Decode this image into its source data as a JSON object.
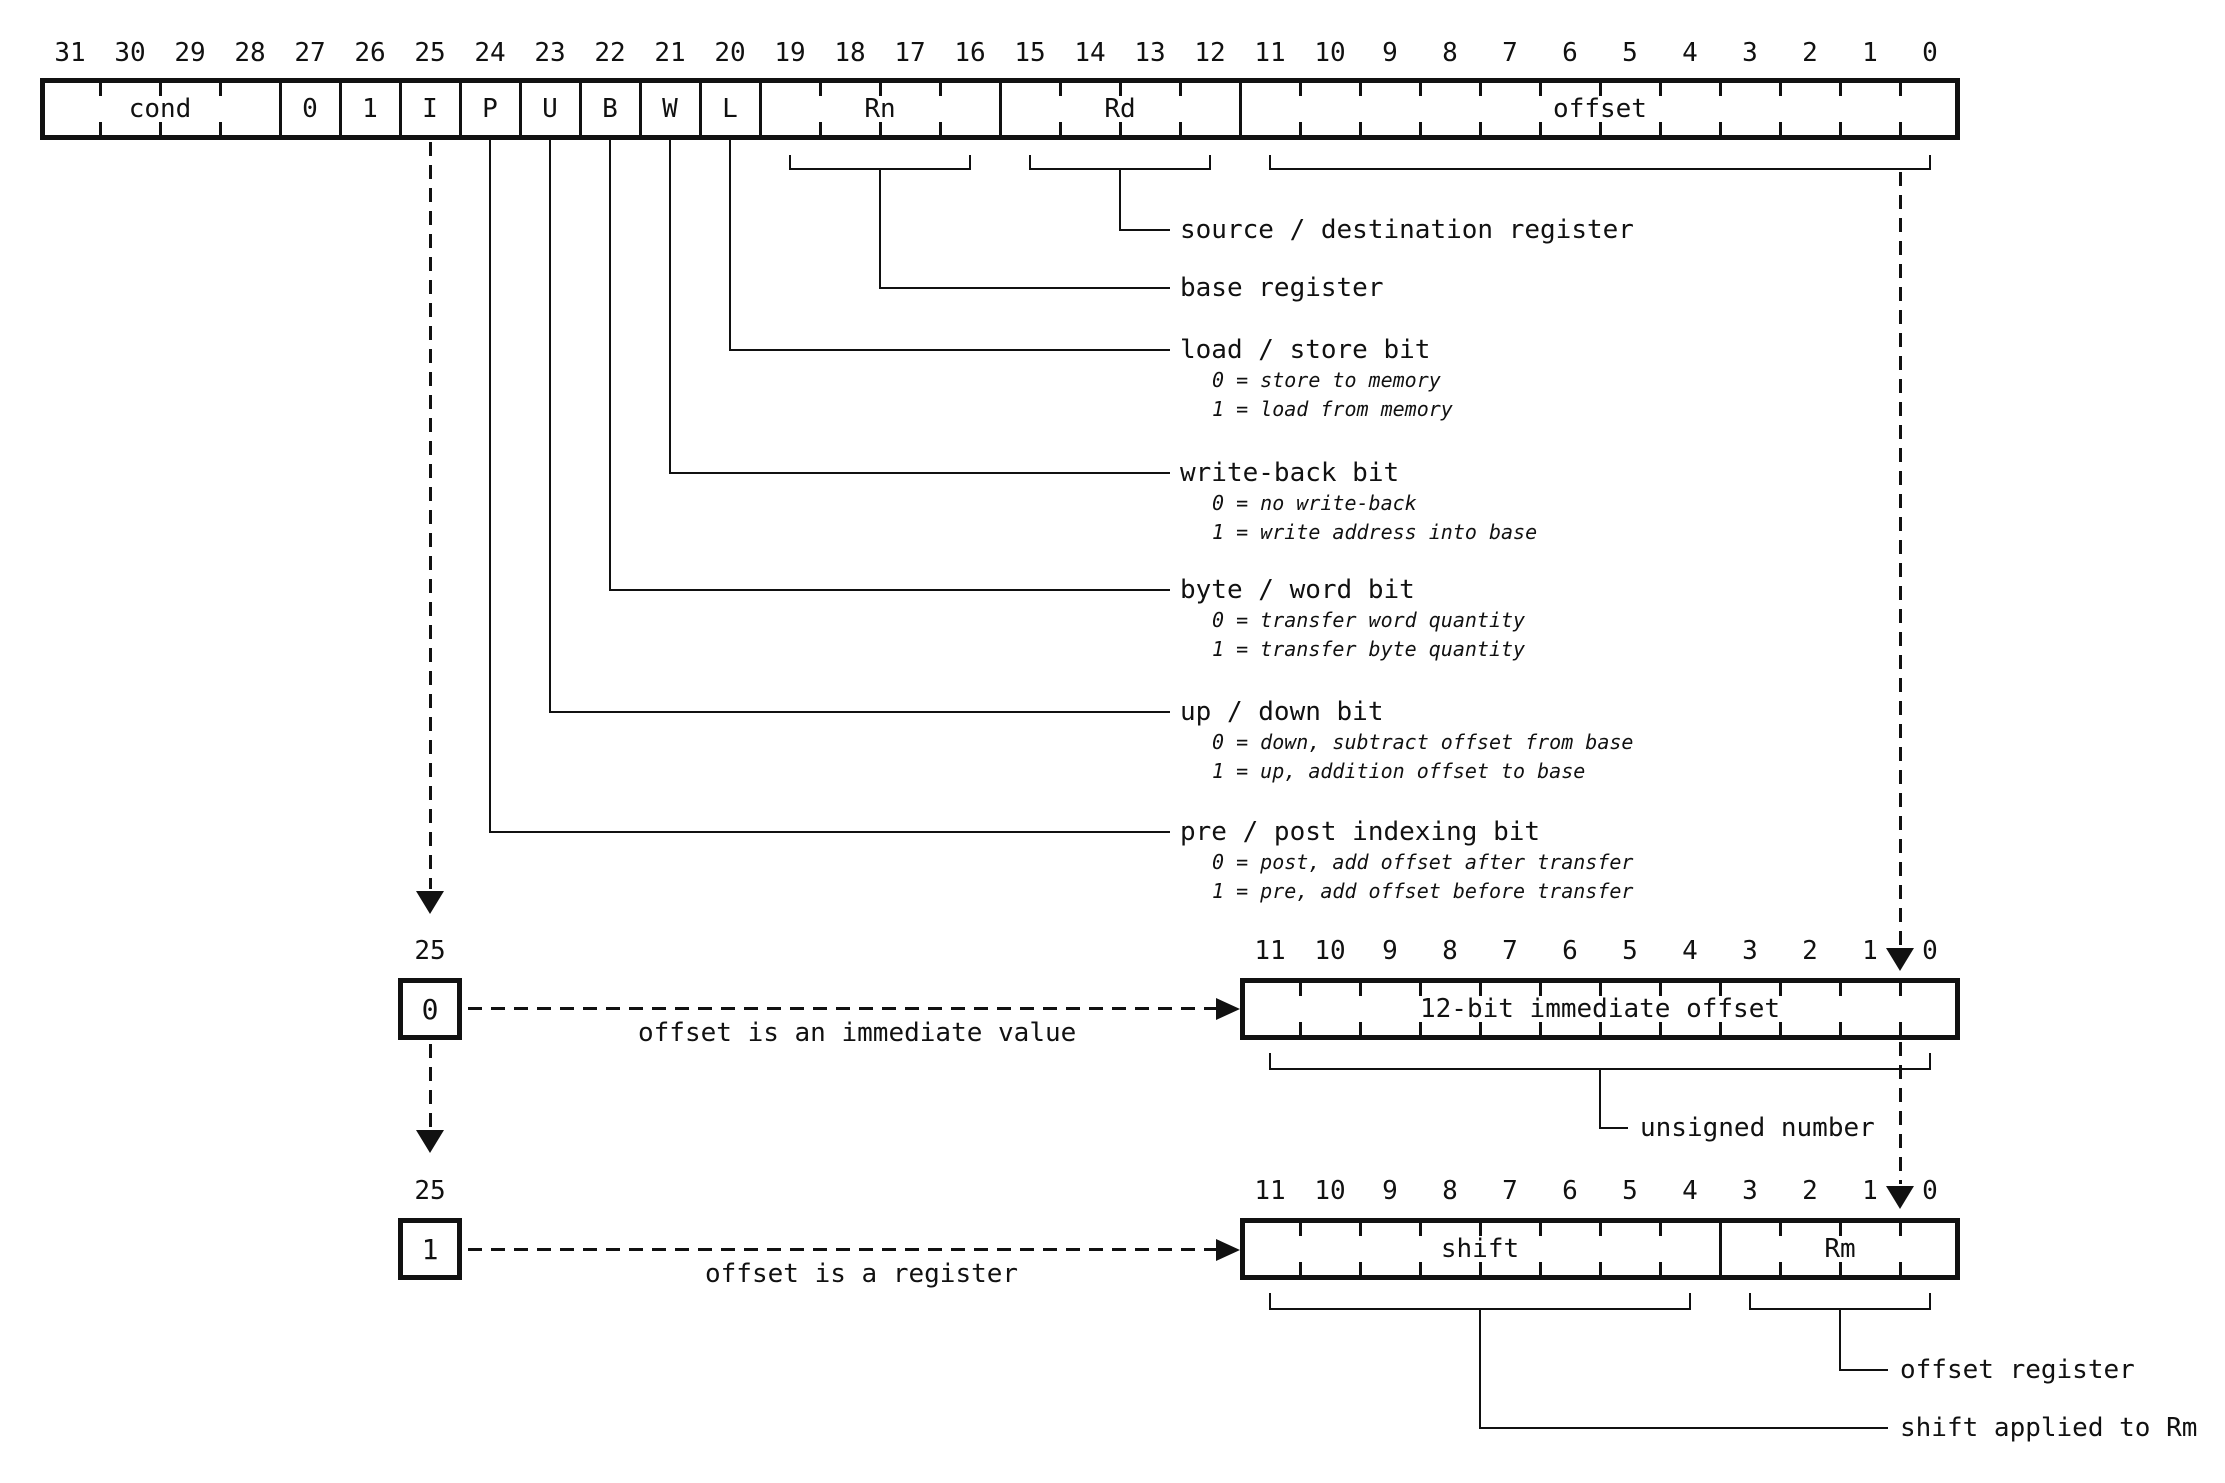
{
  "colors": {
    "ink": "#111111",
    "background": "#ffffff"
  },
  "instruction_word": {
    "bit_numbers": [
      "31",
      "30",
      "29",
      "28",
      "27",
      "26",
      "25",
      "24",
      "23",
      "22",
      "21",
      "20",
      "19",
      "18",
      "17",
      "16",
      "15",
      "14",
      "13",
      "12",
      "11",
      "10",
      "9",
      "8",
      "7",
      "6",
      "5",
      "4",
      "3",
      "2",
      "1",
      "0"
    ],
    "fields": [
      {
        "name": "cond",
        "label": "cond",
        "bits": 4
      },
      {
        "name": "const-0",
        "label": "0",
        "bits": 1
      },
      {
        "name": "const-1",
        "label": "1",
        "bits": 1
      },
      {
        "name": "i-bit",
        "label": "I",
        "bits": 1
      },
      {
        "name": "p-bit",
        "label": "P",
        "bits": 1
      },
      {
        "name": "u-bit",
        "label": "U",
        "bits": 1
      },
      {
        "name": "b-bit",
        "label": "B",
        "bits": 1
      },
      {
        "name": "w-bit",
        "label": "W",
        "bits": 1
      },
      {
        "name": "l-bit",
        "label": "L",
        "bits": 1
      },
      {
        "name": "rn",
        "label": "Rn",
        "bits": 4
      },
      {
        "name": "rd",
        "label": "Rd",
        "bits": 4
      },
      {
        "name": "offset",
        "label": "offset",
        "bits": 12
      }
    ]
  },
  "annotations": [
    {
      "source": "Rd",
      "label": "source / destination register",
      "sub": []
    },
    {
      "source": "Rn",
      "label": "base register",
      "sub": []
    },
    {
      "source": "L",
      "label": "load / store bit",
      "sub": [
        "0 = store to memory",
        "1 = load from memory"
      ]
    },
    {
      "source": "W",
      "label": "write-back bit",
      "sub": [
        "0 = no write-back",
        "1 = write address into base"
      ]
    },
    {
      "source": "B",
      "label": "byte / word bit",
      "sub": [
        "0 = transfer word quantity",
        "1 = transfer byte quantity"
      ]
    },
    {
      "source": "U",
      "label": "up / down bit",
      "sub": [
        "0 = down, subtract offset from base",
        "1 = up, addition offset to base"
      ]
    },
    {
      "source": "P",
      "label": "pre / post indexing bit",
      "sub": [
        "0 = post, add offset after transfer",
        "1 = pre, add offset before transfer"
      ]
    }
  ],
  "immediate_variant": {
    "bit_number": "25",
    "selector_value": "0",
    "arrow_caption": "offset is an immediate value",
    "field_bit_numbers": [
      "11",
      "10",
      "9",
      "8",
      "7",
      "6",
      "5",
      "4",
      "3",
      "2",
      "1",
      "0"
    ],
    "field_label": "12-bit immediate offset",
    "brace_caption": "unsigned number"
  },
  "register_variant": {
    "bit_number": "25",
    "selector_value": "1",
    "arrow_caption": "offset is a register",
    "field_bit_numbers": [
      "11",
      "10",
      "9",
      "8",
      "7",
      "6",
      "5",
      "4",
      "3",
      "2",
      "1",
      "0"
    ],
    "fields": [
      {
        "name": "shift",
        "label": "shift",
        "bits": 8
      },
      {
        "name": "rm",
        "label": "Rm",
        "bits": 4
      }
    ],
    "rm_caption": "offset register",
    "shift_caption": "shift applied to Rm"
  }
}
